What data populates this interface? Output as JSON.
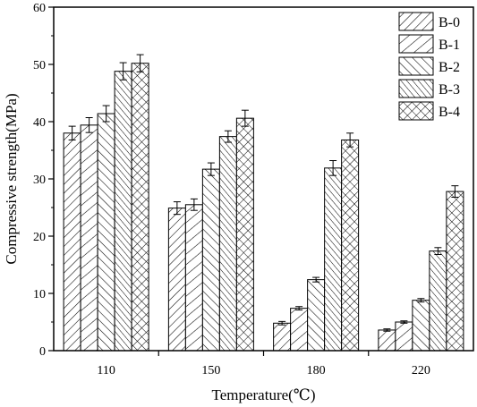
{
  "chart_data": {
    "type": "bar",
    "xlabel": "Temperature(℃)",
    "ylabel": "Compressive strength(MPa)",
    "ylim": [
      0,
      60
    ],
    "yticks": [
      0,
      10,
      20,
      30,
      40,
      50,
      60
    ],
    "categories": [
      "110",
      "150",
      "180",
      "220"
    ],
    "series": [
      {
        "name": "B-0",
        "pattern": "diag-right",
        "values": [
          38.0,
          24.9,
          4.8,
          3.6
        ],
        "errors": [
          1.2,
          1.1,
          0.3,
          0.2
        ]
      },
      {
        "name": "B-1",
        "pattern": "diag-right-wide",
        "values": [
          39.4,
          25.5,
          7.4,
          5.0
        ],
        "errors": [
          1.3,
          1.0,
          0.3,
          0.2
        ]
      },
      {
        "name": "B-2",
        "pattern": "diag-left",
        "values": [
          41.4,
          31.7,
          12.4,
          8.8
        ],
        "errors": [
          1.4,
          1.1,
          0.4,
          0.3
        ]
      },
      {
        "name": "B-3",
        "pattern": "diag-left-dense",
        "values": [
          48.8,
          37.4,
          31.9,
          17.4
        ],
        "errors": [
          1.5,
          1.0,
          1.3,
          0.6
        ]
      },
      {
        "name": "B-4",
        "pattern": "crosshatch",
        "values": [
          50.2,
          40.6,
          36.8,
          27.8
        ],
        "errors": [
          1.5,
          1.4,
          1.2,
          1.0
        ]
      }
    ],
    "legend_position": "top-right",
    "grid": false,
    "colors": {
      "bar_stroke": "#000000",
      "fill": "#ffffff",
      "axis": "#000000"
    }
  }
}
